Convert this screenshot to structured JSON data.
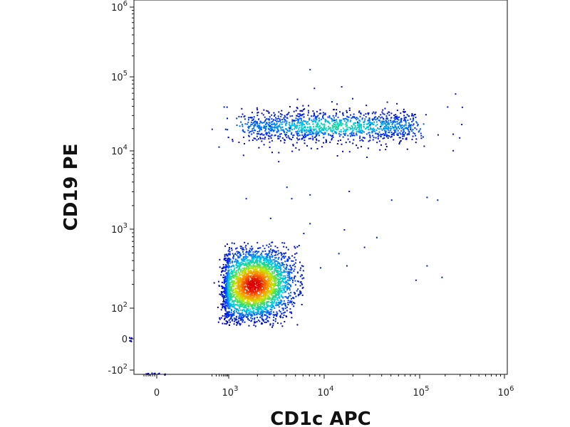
{
  "chart_data": {
    "type": "scatter",
    "title": "",
    "xlabel": "CD1c APC",
    "ylabel": "CD19 PE",
    "x_scale": "biexponential",
    "y_scale": "biexponential",
    "xlim": [
      -100,
      1000000
    ],
    "ylim": [
      -100,
      1000000
    ],
    "grid": false,
    "coloring": "density (blue low → green → yellow → red high)",
    "x_ticks": [
      {
        "value": 0,
        "label": "0"
      },
      {
        "value": 1000,
        "label": "10",
        "exp": "3"
      },
      {
        "value": 10000,
        "label": "10",
        "exp": "4"
      },
      {
        "value": 100000,
        "label": "10",
        "exp": "5"
      },
      {
        "value": 1000000,
        "label": "10",
        "exp": "6"
      }
    ],
    "y_ticks": [
      {
        "value": -100,
        "label": "-10",
        "exp": "2"
      },
      {
        "value": 0,
        "label": "0"
      },
      {
        "value": 100,
        "label": "10",
        "exp": "2"
      },
      {
        "value": 1000,
        "label": "10",
        "exp": "3"
      },
      {
        "value": 10000,
        "label": "10",
        "exp": "4"
      },
      {
        "value": 100000,
        "label": "10",
        "exp": "5"
      },
      {
        "value": 1000000,
        "label": "10",
        "exp": "6"
      }
    ],
    "populations": [
      {
        "description": "dense low-CD19 population",
        "center": [
          1800,
          200
        ],
        "x_range": [
          150,
          6000
        ],
        "y_range": [
          40,
          700
        ],
        "relative_count": 0.75
      },
      {
        "description": "CD19-positive population",
        "center": [
          15000,
          22000
        ],
        "x_range": [
          600,
          300000
        ],
        "y_range": [
          8000,
          60000
        ],
        "relative_count": 0.25
      }
    ],
    "sparse_points": [
      [
        7000,
        130000
      ],
      [
        15000,
        75000
      ],
      [
        22000,
        25000
      ],
      [
        260000,
        60000
      ],
      [
        210000,
        40000
      ],
      [
        600,
        40000
      ],
      [
        190,
        20000
      ],
      [
        370,
        11500
      ],
      [
        700,
        20000
      ],
      [
        2800,
        14000
      ],
      [
        4000,
        3500
      ],
      [
        7000,
        2800
      ],
      [
        18000,
        3100
      ],
      [
        50000,
        2400
      ],
      [
        120000,
        2600
      ],
      [
        160000,
        2400
      ],
      [
        4500,
        2500
      ],
      [
        6000,
        900
      ],
      [
        7000,
        1200
      ],
      [
        16000,
        1000
      ],
      [
        26000,
        600
      ],
      [
        35000,
        800
      ],
      [
        14000,
        500
      ],
      [
        17000,
        350
      ],
      [
        9000,
        330
      ],
      [
        120000,
        350
      ],
      [
        180000,
        250
      ],
      [
        90000,
        230
      ],
      [
        2700,
        1400
      ],
      [
        1500,
        2500
      ]
    ]
  }
}
